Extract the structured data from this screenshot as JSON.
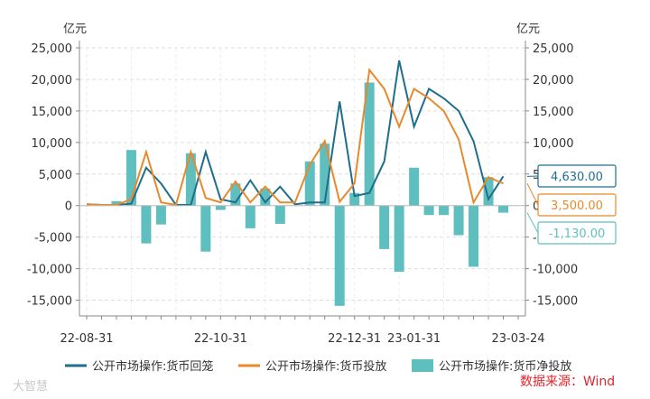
{
  "chart_data": {
    "type": "bar-line-combo",
    "unit_left": "亿元",
    "unit_right": "亿元",
    "ylim": [
      -17500,
      25000
    ],
    "yticks": [
      -15000,
      -10000,
      -5000,
      0,
      5000,
      10000,
      15000,
      20000,
      25000
    ],
    "ytick_labels": [
      "-15,000",
      "-10,000",
      "-5,000",
      "0",
      "5,000",
      "10,000",
      "15,000",
      "20,000",
      "25,000"
    ],
    "x_labels": [
      {
        "label": "22-08-31",
        "index": 0
      },
      {
        "label": "22-10-31",
        "index": 9
      },
      {
        "label": "22-12-31",
        "index": 18
      },
      {
        "label": "23-01-31",
        "index": 22
      },
      {
        "label": "23-03-24",
        "index": 29
      }
    ],
    "n_points": 30,
    "grid": true,
    "legend_position": "bottom",
    "series": [
      {
        "name": "公开市场操作:货币回笼",
        "type": "line",
        "color": "#1f6e8c",
        "values": [
          200,
          100,
          100,
          300,
          6000,
          3500,
          100,
          100,
          8500,
          1000,
          500,
          4000,
          500,
          3000,
          200,
          500,
          500,
          16500,
          1500,
          2000,
          7000,
          23000,
          12500,
          18500,
          17000,
          15000,
          10200,
          1000,
          4630,
          4630
        ]
      },
      {
        "name": "公开市场操作:货币投放",
        "type": "line",
        "color": "#e8892b",
        "values": [
          200,
          100,
          100,
          1000,
          8500,
          500,
          100,
          8500,
          1200,
          500,
          3800,
          500,
          3000,
          500,
          500,
          6500,
          10200,
          600,
          3500,
          21500,
          18500,
          12500,
          18500,
          17000,
          15000,
          10500,
          500,
          4500,
          3500,
          3500
        ]
      },
      {
        "name": "公开市场操作:货币净投放",
        "type": "bar",
        "color": "#5fbfbf",
        "values": [
          0,
          0,
          700,
          8800,
          -6000,
          -3000,
          0,
          8300,
          -7300,
          -700,
          3500,
          -3600,
          2700,
          -2900,
          0,
          7000,
          9800,
          -15900,
          2000,
          19500,
          -6900,
          -10500,
          6000,
          -1500,
          -1500,
          -4700,
          -9700,
          4500,
          -1130,
          -1130
        ]
      }
    ],
    "callouts": [
      {
        "text": "4,630.00",
        "value": 4630,
        "color": "#1f6e8c"
      },
      {
        "text": "3,500.00",
        "value": 3500,
        "color": "#e8892b"
      },
      {
        "text": "-1,130.00",
        "value": -1130,
        "color": "#5fbfbf"
      }
    ]
  },
  "source_label": "数据来源：Wind",
  "watermark": "大智慧"
}
